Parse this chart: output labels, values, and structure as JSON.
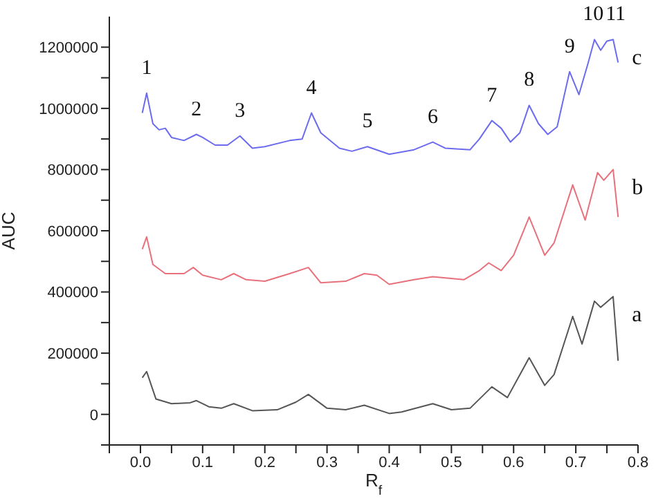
{
  "chart_data": {
    "type": "line",
    "xlabel": "R$_{f}$",
    "ylabel": "AUC",
    "xlim": [
      -0.05,
      0.8
    ],
    "xticks": [
      {
        "value": -0.05,
        "label": null
      },
      {
        "value": 0,
        "label": "0.0"
      },
      {
        "value": 0.05,
        "label": null
      },
      0.1,
      {
        "value": 0.15,
        "label": null
      },
      0.2,
      {
        "value": 0.25,
        "label": null
      },
      0.3,
      {
        "value": 0.35,
        "label": null
      },
      0.4,
      {
        "value": 0.45,
        "label": null
      },
      0.5,
      {
        "value": 0.55,
        "label": null
      },
      0.6,
      {
        "value": 0.65,
        "label": null
      },
      0.7,
      {
        "value": 0.75,
        "label": null
      },
      0.8
    ],
    "ylim": [
      -100000,
      1300000
    ],
    "yticks": [
      {
        "value": -100000,
        "label": null
      },
      0,
      {
        "value": 100000,
        "label": null
      },
      200000,
      {
        "value": 300000,
        "label": null
      },
      400000,
      {
        "value": 500000,
        "label": null
      },
      600000,
      {
        "value": 700000,
        "label": null
      },
      800000,
      {
        "value": 900000,
        "label": null
      },
      1000000,
      {
        "value": 1100000,
        "label": null
      },
      1200000
    ],
    "grid": false,
    "legend": false,
    "marker": "none",
    "line_style": "solid",
    "series": [
      {
        "name": "a",
        "color": "#555555",
        "x": [
          0.003,
          0.01,
          0.025,
          0.05,
          0.08,
          0.09,
          0.11,
          0.13,
          0.15,
          0.18,
          0.22,
          0.25,
          0.27,
          0.3,
          0.33,
          0.36,
          0.4,
          0.42,
          0.47,
          0.5,
          0.53,
          0.565,
          0.59,
          0.625,
          0.65,
          0.665,
          0.695,
          0.71,
          0.73,
          0.74,
          0.76,
          0.768
        ],
        "values": [
          120000,
          140000,
          50000,
          35000,
          38000,
          45000,
          25000,
          20000,
          35000,
          12000,
          15000,
          40000,
          65000,
          20000,
          15000,
          30000,
          3000,
          8000,
          35000,
          15000,
          20000,
          90000,
          55000,
          185000,
          95000,
          130000,
          320000,
          230000,
          370000,
          350000,
          385000,
          175000
        ]
      },
      {
        "name": "b",
        "color": "#e8707a",
        "x": [
          0.003,
          0.01,
          0.02,
          0.04,
          0.07,
          0.085,
          0.1,
          0.13,
          0.15,
          0.17,
          0.2,
          0.24,
          0.27,
          0.29,
          0.33,
          0.36,
          0.38,
          0.4,
          0.44,
          0.47,
          0.52,
          0.545,
          0.56,
          0.58,
          0.6,
          0.625,
          0.65,
          0.665,
          0.695,
          0.715,
          0.735,
          0.745,
          0.76,
          0.768
        ],
        "values": [
          540000,
          580000,
          490000,
          460000,
          460000,
          480000,
          455000,
          440000,
          460000,
          440000,
          435000,
          460000,
          480000,
          430000,
          435000,
          460000,
          455000,
          425000,
          440000,
          450000,
          440000,
          470000,
          495000,
          470000,
          520000,
          645000,
          520000,
          560000,
          750000,
          635000,
          790000,
          765000,
          800000,
          645000
        ]
      },
      {
        "name": "c",
        "color": "#6b6bf0",
        "x": [
          0.003,
          0.01,
          0.02,
          0.03,
          0.04,
          0.05,
          0.07,
          0.09,
          0.1,
          0.12,
          0.14,
          0.16,
          0.18,
          0.2,
          0.24,
          0.26,
          0.275,
          0.29,
          0.32,
          0.34,
          0.365,
          0.4,
          0.44,
          0.47,
          0.49,
          0.53,
          0.545,
          0.565,
          0.58,
          0.595,
          0.61,
          0.625,
          0.64,
          0.655,
          0.67,
          0.69,
          0.705,
          0.72,
          0.73,
          0.74,
          0.75,
          0.76,
          0.768
        ],
        "values": [
          985000,
          1050000,
          950000,
          930000,
          935000,
          905000,
          895000,
          915000,
          905000,
          880000,
          880000,
          910000,
          870000,
          875000,
          895000,
          900000,
          985000,
          920000,
          870000,
          860000,
          875000,
          850000,
          865000,
          890000,
          870000,
          865000,
          900000,
          960000,
          935000,
          890000,
          920000,
          1010000,
          950000,
          915000,
          940000,
          1120000,
          1045000,
          1150000,
          1225000,
          1190000,
          1220000,
          1225000,
          1150000
        ]
      }
    ],
    "annotations": [
      {
        "text": "1",
        "x": 0.01,
        "y": 1050000
      },
      {
        "text": "2",
        "x": 0.09,
        "y": 915000
      },
      {
        "text": "3",
        "x": 0.16,
        "y": 910000
      },
      {
        "text": "4",
        "x": 0.275,
        "y": 985000
      },
      {
        "text": "5",
        "x": 0.365,
        "y": 875000
      },
      {
        "text": "6",
        "x": 0.47,
        "y": 890000
      },
      {
        "text": "7",
        "x": 0.565,
        "y": 960000
      },
      {
        "text": "8",
        "x": 0.625,
        "y": 1010000
      },
      {
        "text": "9",
        "x": 0.69,
        "y": 1120000
      },
      {
        "text": "10",
        "x": 0.728,
        "y": 1225000
      },
      {
        "text": "11",
        "x": 0.764,
        "y": 1225000
      }
    ]
  }
}
